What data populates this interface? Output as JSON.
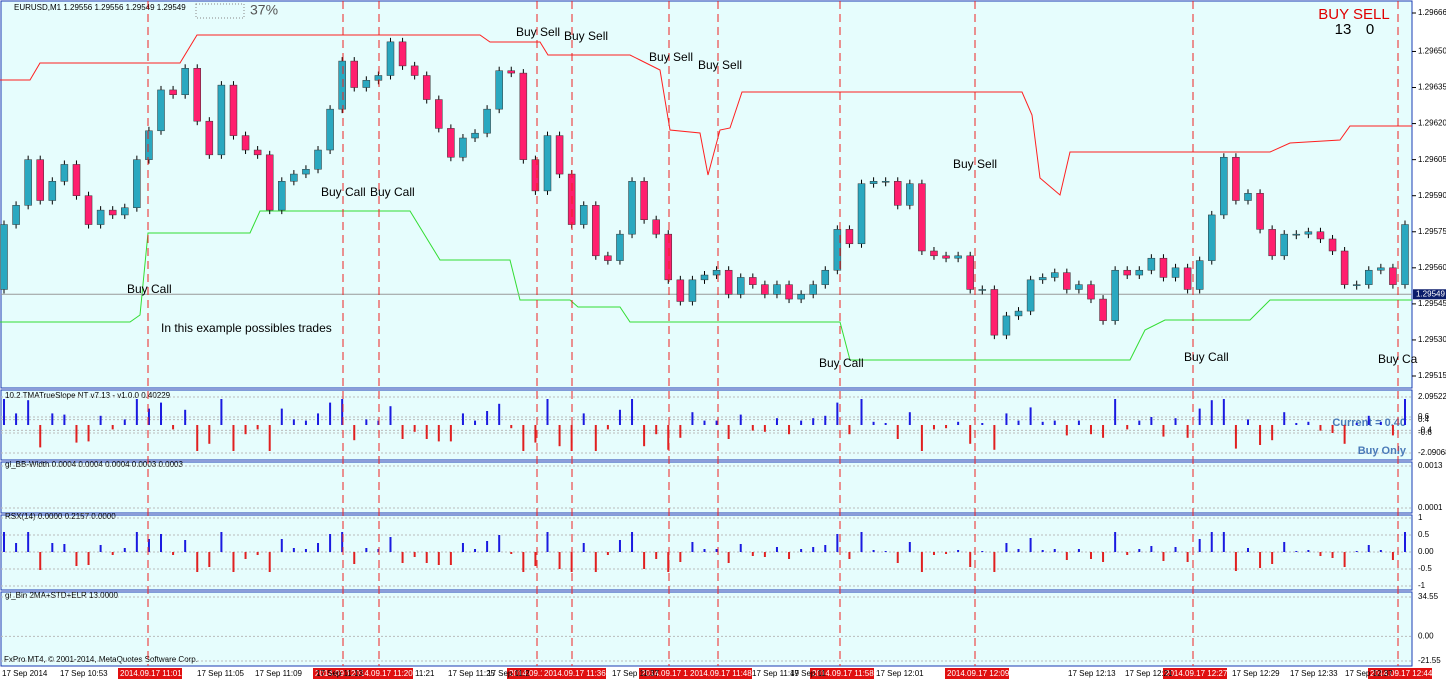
{
  "chart_data": {
    "type": "candlestick",
    "title": "EURUSD,M1  1.29556 1.29556 1.29549 1.29549",
    "zoom_label": "37%",
    "signal_header": "BUY  SELL",
    "signal_counts": [
      "13",
      "0"
    ],
    "annotations": [
      "Buy Sell",
      "Buy Sell",
      "Buy Sell",
      "Buy Sell",
      "Buy Sell",
      "Buy Call",
      "Buy Call",
      "Buy Call",
      "Buy Call",
      "Buy Call",
      "Buy Ca",
      "In this example possibles trades"
    ],
    "ylim": [
      1.29515,
      1.29666
    ],
    "yticks": [
      1.29666,
      {
        "value": 1.2965,
        "label": "1.29650"
      },
      1.29635,
      {
        "value": 1.2962,
        "label": "1.29620"
      },
      1.29605,
      {
        "value": 1.2959,
        "label": "1.29590"
      },
      1.29575,
      {
        "value": 1.2956,
        "label": "1.29560"
      },
      1.29545,
      {
        "value": 1.2953,
        "label": "1.29530"
      },
      1.29515
    ],
    "current_price": 1.29549,
    "first_open": 1.29551,
    "closes": [
      1.29578,
      1.29586,
      1.29605,
      1.29588,
      1.29596,
      1.29603,
      1.2959,
      1.29578,
      1.29584,
      1.29582,
      1.29585,
      1.29605,
      1.29617,
      1.29634,
      1.29632,
      1.29643,
      1.29621,
      1.29607,
      1.29636,
      1.29615,
      1.29609,
      1.29607,
      1.29584,
      1.29596,
      1.29599,
      1.29601,
      1.29609,
      1.29626,
      1.29646,
      1.29635,
      1.29638,
      1.2964,
      1.29654,
      1.29644,
      1.2964,
      1.2963,
      1.29618,
      1.29606,
      1.29614,
      1.29616,
      1.29626,
      1.29642,
      1.29641,
      1.29605,
      1.29592,
      1.29615,
      1.29599,
      1.29578,
      1.29586,
      1.29565,
      1.29563,
      1.29574,
      1.29596,
      1.2958,
      1.29574,
      1.29555,
      1.29546,
      1.29555,
      1.29557,
      1.29559,
      1.29549,
      1.29556,
      1.29553,
      1.29549,
      1.29553,
      1.29547,
      1.29549,
      1.29553,
      1.29559,
      1.29576,
      1.2957,
      1.29595,
      1.29596,
      1.29596,
      1.29586,
      1.29595,
      1.29567,
      1.29565,
      1.29564,
      1.29565,
      1.29551,
      1.29551,
      1.29532,
      1.2954,
      1.29542,
      1.29555,
      1.29556,
      1.29558,
      1.29551,
      1.29553,
      1.29547,
      1.29538,
      1.29559,
      1.29557,
      1.29559,
      1.29564,
      1.29556,
      1.2956,
      1.29551,
      1.29563,
      1.29582,
      1.29606,
      1.29588,
      1.29591,
      1.29576,
      1.29565,
      1.29574,
      1.29574,
      1.29575,
      1.29572,
      1.29567,
      1.29553,
      1.29553,
      1.29559,
      1.2956,
      1.29553,
      1.29578
    ],
    "signal_times": [
      "2014.09.17 11:01",
      "2014.09.1",
      "2014.09.17 11:20",
      "2014.09.1",
      "2014.09.17 11:36",
      "2014.09.17 11",
      "2014.09.17 11:48",
      "2014.09.17 11:58",
      "2014.09.17 12:09",
      "2014.09.17 12:27",
      "2014.09.17 12:44"
    ],
    "time_labels": [
      "17 Sep 2014",
      "17 Sep 10:53",
      "17 Sep 11:05",
      "17 Sep 11:09",
      "17 Sep 11:13",
      "11:21",
      "17 Sep 11:25",
      "17 Sep 11:2",
      "17 Sep 11:37",
      "17 Sep 11:49",
      "17 Sep 11",
      "17 Sep 12:01",
      "17 Sep 12:13",
      "17 Sep 12:21",
      "17 Sep 12:29",
      "17 Sep 12:33",
      "17 Sep 12:37"
    ],
    "panels": [
      {
        "label": "10.2 TMATrueSlope NT v7.13 - v1.0.0   0.40229",
        "notes": [
          "Current = 0.40",
          "Buy Only"
        ],
        "ylim": [
          -2.09068,
          2.09522
        ],
        "yticks": [
          2.09522,
          0.6,
          0.4,
          -0.4,
          -0.6,
          -2.09068
        ]
      },
      {
        "label": "gi_BB-Width 0.0004 0.0004 0.0004 0.0003 0.0003",
        "ylim": [
          0.0001,
          0.0013
        ],
        "yticks": [
          0.0013,
          0.0001
        ]
      },
      {
        "label": "RSX(14) 0.0000 0.2157 0.0000",
        "ylim": [
          -1,
          1
        ],
        "yticks": [
          1,
          0.5,
          {
            "value": 0,
            "label": "0.00"
          },
          -0.5,
          -1
        ]
      },
      {
        "label": "gi_Bin 2MA+STD+ELR 13.0000",
        "ylim": [
          -21.55,
          34.55
        ],
        "yticks": [
          34.55,
          {
            "value": 0,
            "label": "0.00"
          },
          -21.55
        ]
      }
    ],
    "footer": "FxPro MT4, © 2001-2014, MetaQuotes Software Corp."
  }
}
